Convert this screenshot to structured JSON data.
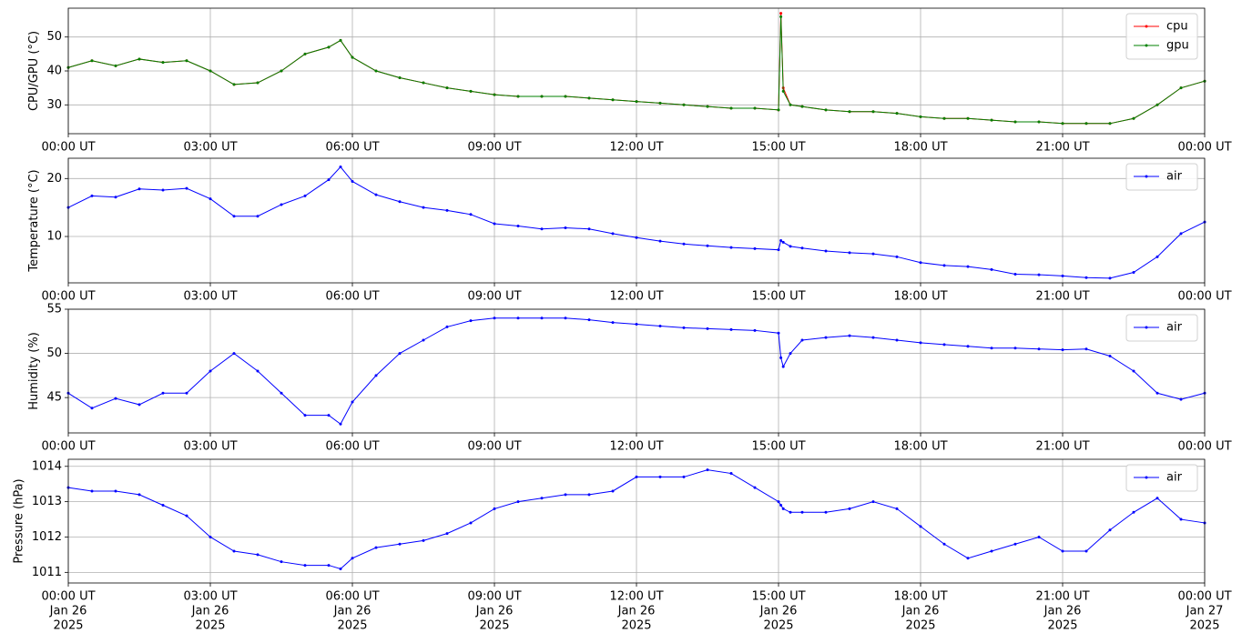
{
  "chart_data": [
    {
      "type": "line",
      "ylabel": "CPU/GPU (°C)",
      "x": [
        "2025-01-26 00:00",
        "2025-01-26 00:30",
        "2025-01-26 01:00",
        "2025-01-26 01:30",
        "2025-01-26 02:00",
        "2025-01-26 02:30",
        "2025-01-26 03:00",
        "2025-01-26 03:30",
        "2025-01-26 04:00",
        "2025-01-26 04:30",
        "2025-01-26 05:00",
        "2025-01-26 05:30",
        "2025-01-26 05:45",
        "2025-01-26 06:00",
        "2025-01-26 06:30",
        "2025-01-26 07:00",
        "2025-01-26 07:30",
        "2025-01-26 08:00",
        "2025-01-26 08:30",
        "2025-01-26 09:00",
        "2025-01-26 09:30",
        "2025-01-26 10:00",
        "2025-01-26 10:30",
        "2025-01-26 11:00",
        "2025-01-26 11:30",
        "2025-01-26 12:00",
        "2025-01-26 12:30",
        "2025-01-26 13:00",
        "2025-01-26 13:30",
        "2025-01-26 14:00",
        "2025-01-26 14:30",
        "2025-01-26 15:00",
        "2025-01-26 15:03",
        "2025-01-26 15:06",
        "2025-01-26 15:15",
        "2025-01-26 15:30",
        "2025-01-26 16:00",
        "2025-01-26 16:30",
        "2025-01-26 17:00",
        "2025-01-26 17:30",
        "2025-01-26 18:00",
        "2025-01-26 18:30",
        "2025-01-26 19:00",
        "2025-01-26 19:30",
        "2025-01-26 20:00",
        "2025-01-26 20:30",
        "2025-01-26 21:00",
        "2025-01-26 21:30",
        "2025-01-26 22:00",
        "2025-01-26 22:30",
        "2025-01-26 23:00",
        "2025-01-26 23:30",
        "2025-01-27 00:00"
      ],
      "series": [
        {
          "name": "cpu",
          "color": "#ff0000",
          "values": [
            41,
            43,
            41.5,
            43.5,
            42.5,
            43,
            40,
            36,
            36.5,
            40,
            45,
            47,
            49,
            44,
            40,
            38,
            36.5,
            35,
            34,
            33,
            32.5,
            32.5,
            32.5,
            32,
            31.5,
            31,
            30.5,
            30,
            29.5,
            29,
            29,
            28.5,
            57,
            35,
            30,
            29.5,
            28.5,
            28,
            28,
            27.5,
            26.5,
            26,
            26,
            25.5,
            25,
            25,
            24.5,
            24.5,
            24.5,
            26,
            30,
            35,
            37
          ]
        },
        {
          "name": "gpu",
          "color": "#008000",
          "values": [
            41,
            43,
            41.5,
            43.5,
            42.5,
            43,
            40,
            36,
            36.5,
            40,
            45,
            47,
            49,
            44,
            40,
            38,
            36.5,
            35,
            34,
            33,
            32.5,
            32.5,
            32.5,
            32,
            31.5,
            31,
            30.5,
            30,
            29.5,
            29,
            29,
            28.5,
            56,
            34,
            30,
            29.5,
            28.5,
            28,
            28,
            27.5,
            26.5,
            26,
            26,
            25.5,
            25,
            25,
            24.5,
            24.5,
            24.5,
            26,
            30,
            35,
            37
          ]
        }
      ],
      "xlim": [
        "2025-01-26 00:00",
        "2025-01-27 00:00"
      ],
      "xticks": [
        {
          "value": "2025-01-26 00:00",
          "label": "00:00 UT"
        },
        {
          "value": "2025-01-26 03:00",
          "label": "03:00 UT"
        },
        {
          "value": "2025-01-26 06:00",
          "label": "06:00 UT"
        },
        {
          "value": "2025-01-26 09:00",
          "label": "09:00 UT"
        },
        {
          "value": "2025-01-26 12:00",
          "label": "12:00 UT"
        },
        {
          "value": "2025-01-26 15:00",
          "label": "15:00 UT"
        },
        {
          "value": "2025-01-26 18:00",
          "label": "18:00 UT"
        },
        {
          "value": "2025-01-26 21:00",
          "label": "21:00 UT"
        },
        {
          "value": "2025-01-27 00:00",
          "label": "00:00 UT"
        }
      ],
      "ylim": [
        21.5,
        58.5
      ],
      "yticks": [
        30,
        40,
        50
      ],
      "grid": true,
      "legend": "upper right"
    },
    {
      "type": "line",
      "ylabel": "Temperature (°C)",
      "x": [
        "2025-01-26 00:00",
        "2025-01-26 00:30",
        "2025-01-26 01:00",
        "2025-01-26 01:30",
        "2025-01-26 02:00",
        "2025-01-26 02:30",
        "2025-01-26 03:00",
        "2025-01-26 03:30",
        "2025-01-26 04:00",
        "2025-01-26 04:30",
        "2025-01-26 05:00",
        "2025-01-26 05:30",
        "2025-01-26 05:45",
        "2025-01-26 06:00",
        "2025-01-26 06:30",
        "2025-01-26 07:00",
        "2025-01-26 07:30",
        "2025-01-26 08:00",
        "2025-01-26 08:30",
        "2025-01-26 09:00",
        "2025-01-26 09:30",
        "2025-01-26 10:00",
        "2025-01-26 10:30",
        "2025-01-26 11:00",
        "2025-01-26 11:30",
        "2025-01-26 12:00",
        "2025-01-26 12:30",
        "2025-01-26 13:00",
        "2025-01-26 13:30",
        "2025-01-26 14:00",
        "2025-01-26 14:30",
        "2025-01-26 15:00",
        "2025-01-26 15:03",
        "2025-01-26 15:06",
        "2025-01-26 15:15",
        "2025-01-26 15:30",
        "2025-01-26 16:00",
        "2025-01-26 16:30",
        "2025-01-26 17:00",
        "2025-01-26 17:30",
        "2025-01-26 18:00",
        "2025-01-26 18:30",
        "2025-01-26 19:00",
        "2025-01-26 19:30",
        "2025-01-26 20:00",
        "2025-01-26 20:30",
        "2025-01-26 21:00",
        "2025-01-26 21:30",
        "2025-01-26 22:00",
        "2025-01-26 22:30",
        "2025-01-26 23:00",
        "2025-01-26 23:30",
        "2025-01-27 00:00"
      ],
      "series": [
        {
          "name": "air",
          "color": "#0000ff",
          "values": [
            15,
            17,
            16.8,
            18.2,
            18,
            18.3,
            16.5,
            13.5,
            13.5,
            15.5,
            17,
            19.8,
            22,
            19.5,
            17.2,
            16,
            15,
            14.5,
            13.8,
            12.2,
            11.8,
            11.3,
            11.5,
            11.3,
            10.5,
            9.8,
            9.2,
            8.7,
            8.4,
            8.1,
            7.9,
            7.7,
            9.3,
            9,
            8.3,
            8,
            7.5,
            7.2,
            7,
            6.5,
            5.5,
            5,
            4.8,
            4.3,
            3.5,
            3.4,
            3.2,
            2.9,
            2.8,
            3.8,
            6.5,
            10.5,
            12.5
          ]
        }
      ],
      "xlim": [
        "2025-01-26 00:00",
        "2025-01-27 00:00"
      ],
      "xticks": [
        {
          "value": "2025-01-26 00:00",
          "label": "00:00 UT"
        },
        {
          "value": "2025-01-26 03:00",
          "label": "03:00 UT"
        },
        {
          "value": "2025-01-26 06:00",
          "label": "06:00 UT"
        },
        {
          "value": "2025-01-26 09:00",
          "label": "09:00 UT"
        },
        {
          "value": "2025-01-26 12:00",
          "label": "12:00 UT"
        },
        {
          "value": "2025-01-26 15:00",
          "label": "15:00 UT"
        },
        {
          "value": "2025-01-26 18:00",
          "label": "18:00 UT"
        },
        {
          "value": "2025-01-26 21:00",
          "label": "21:00 UT"
        },
        {
          "value": "2025-01-27 00:00",
          "label": "00:00 UT"
        }
      ],
      "ylim": [
        2,
        23.5
      ],
      "yticks": [
        10,
        20
      ],
      "grid": true,
      "legend": "upper right"
    },
    {
      "type": "line",
      "ylabel": "Humidity (%)",
      "x": [
        "2025-01-26 00:00",
        "2025-01-26 00:30",
        "2025-01-26 01:00",
        "2025-01-26 01:30",
        "2025-01-26 02:00",
        "2025-01-26 02:30",
        "2025-01-26 03:00",
        "2025-01-26 03:30",
        "2025-01-26 04:00",
        "2025-01-26 04:30",
        "2025-01-26 05:00",
        "2025-01-26 05:30",
        "2025-01-26 05:45",
        "2025-01-26 06:00",
        "2025-01-26 06:30",
        "2025-01-26 07:00",
        "2025-01-26 07:30",
        "2025-01-26 08:00",
        "2025-01-26 08:30",
        "2025-01-26 09:00",
        "2025-01-26 09:30",
        "2025-01-26 10:00",
        "2025-01-26 10:30",
        "2025-01-26 11:00",
        "2025-01-26 11:30",
        "2025-01-26 12:00",
        "2025-01-26 12:30",
        "2025-01-26 13:00",
        "2025-01-26 13:30",
        "2025-01-26 14:00",
        "2025-01-26 14:30",
        "2025-01-26 15:00",
        "2025-01-26 15:03",
        "2025-01-26 15:06",
        "2025-01-26 15:15",
        "2025-01-26 15:30",
        "2025-01-26 16:00",
        "2025-01-26 16:30",
        "2025-01-26 17:00",
        "2025-01-26 17:30",
        "2025-01-26 18:00",
        "2025-01-26 18:30",
        "2025-01-26 19:00",
        "2025-01-26 19:30",
        "2025-01-26 20:00",
        "2025-01-26 20:30",
        "2025-01-26 21:00",
        "2025-01-26 21:30",
        "2025-01-26 22:00",
        "2025-01-26 22:30",
        "2025-01-26 23:00",
        "2025-01-26 23:30",
        "2025-01-27 00:00"
      ],
      "series": [
        {
          "name": "air",
          "color": "#0000ff",
          "values": [
            45.5,
            43.8,
            44.9,
            44.2,
            45.5,
            45.5,
            48,
            50,
            48,
            45.5,
            43,
            43,
            42,
            44.5,
            47.5,
            50,
            51.5,
            53,
            53.7,
            54,
            54,
            54,
            54,
            53.8,
            53.5,
            53.3,
            53.1,
            52.9,
            52.8,
            52.7,
            52.6,
            52.3,
            49.5,
            48.5,
            50,
            51.5,
            51.8,
            52,
            51.8,
            51.5,
            51.2,
            51,
            50.8,
            50.6,
            50.6,
            50.5,
            50.4,
            50.5,
            49.7,
            48,
            45.5,
            44.8,
            45.5
          ]
        }
      ],
      "xlim": [
        "2025-01-26 00:00",
        "2025-01-27 00:00"
      ],
      "xticks": [
        {
          "value": "2025-01-26 00:00",
          "label": "00:00 UT"
        },
        {
          "value": "2025-01-26 03:00",
          "label": "03:00 UT"
        },
        {
          "value": "2025-01-26 06:00",
          "label": "06:00 UT"
        },
        {
          "value": "2025-01-26 09:00",
          "label": "09:00 UT"
        },
        {
          "value": "2025-01-26 12:00",
          "label": "12:00 UT"
        },
        {
          "value": "2025-01-26 15:00",
          "label": "15:00 UT"
        },
        {
          "value": "2025-01-26 18:00",
          "label": "18:00 UT"
        },
        {
          "value": "2025-01-26 21:00",
          "label": "21:00 UT"
        },
        {
          "value": "2025-01-27 00:00",
          "label": "00:00 UT"
        }
      ],
      "ylim": [
        41,
        55
      ],
      "yticks": [
        45,
        50,
        55
      ],
      "grid": true,
      "legend": "upper right"
    },
    {
      "type": "line",
      "ylabel": "Pressure (hPa)",
      "x": [
        "2025-01-26 00:00",
        "2025-01-26 00:30",
        "2025-01-26 01:00",
        "2025-01-26 01:30",
        "2025-01-26 02:00",
        "2025-01-26 02:30",
        "2025-01-26 03:00",
        "2025-01-26 03:30",
        "2025-01-26 04:00",
        "2025-01-26 04:30",
        "2025-01-26 05:00",
        "2025-01-26 05:30",
        "2025-01-26 05:45",
        "2025-01-26 06:00",
        "2025-01-26 06:30",
        "2025-01-26 07:00",
        "2025-01-26 07:30",
        "2025-01-26 08:00",
        "2025-01-26 08:30",
        "2025-01-26 09:00",
        "2025-01-26 09:30",
        "2025-01-26 10:00",
        "2025-01-26 10:30",
        "2025-01-26 11:00",
        "2025-01-26 11:30",
        "2025-01-26 12:00",
        "2025-01-26 12:30",
        "2025-01-26 13:00",
        "2025-01-26 13:30",
        "2025-01-26 14:00",
        "2025-01-26 14:30",
        "2025-01-26 15:00",
        "2025-01-26 15:03",
        "2025-01-26 15:06",
        "2025-01-26 15:15",
        "2025-01-26 15:30",
        "2025-01-26 16:00",
        "2025-01-26 16:30",
        "2025-01-26 17:00",
        "2025-01-26 17:30",
        "2025-01-26 18:00",
        "2025-01-26 18:30",
        "2025-01-26 19:00",
        "2025-01-26 19:30",
        "2025-01-26 20:00",
        "2025-01-26 20:30",
        "2025-01-26 21:00",
        "2025-01-26 21:30",
        "2025-01-26 22:00",
        "2025-01-26 22:30",
        "2025-01-26 23:00",
        "2025-01-26 23:30",
        "2025-01-27 00:00"
      ],
      "series": [
        {
          "name": "air",
          "color": "#0000ff",
          "values": [
            1013.4,
            1013.3,
            1013.3,
            1013.2,
            1012.9,
            1012.6,
            1012,
            1011.6,
            1011.5,
            1011.3,
            1011.2,
            1011.2,
            1011.1,
            1011.4,
            1011.7,
            1011.8,
            1011.9,
            1012.1,
            1012.4,
            1012.8,
            1013,
            1013.1,
            1013.2,
            1013.2,
            1013.3,
            1013.7,
            1013.7,
            1013.7,
            1013.9,
            1013.8,
            1013.4,
            1013,
            1012.9,
            1012.8,
            1012.7,
            1012.7,
            1012.7,
            1012.8,
            1013,
            1012.8,
            1012.3,
            1011.8,
            1011.4,
            1011.6,
            1011.8,
            1012,
            1011.6,
            1011.6,
            1012.2,
            1012.7,
            1013.1,
            1012.5,
            1012.4
          ]
        }
      ],
      "xlim": [
        "2025-01-26 00:00",
        "2025-01-27 00:00"
      ],
      "xticks": [
        {
          "value": "2025-01-26 00:00",
          "label": [
            "00:00 UT",
            "Jan 26",
            "2025"
          ]
        },
        {
          "value": "2025-01-26 03:00",
          "label": [
            "03:00 UT",
            "Jan 26",
            "2025"
          ]
        },
        {
          "value": "2025-01-26 06:00",
          "label": [
            "06:00 UT",
            "Jan 26",
            "2025"
          ]
        },
        {
          "value": "2025-01-26 09:00",
          "label": [
            "09:00 UT",
            "Jan 26",
            "2025"
          ]
        },
        {
          "value": "2025-01-26 12:00",
          "label": [
            "12:00 UT",
            "Jan 26",
            "2025"
          ]
        },
        {
          "value": "2025-01-26 15:00",
          "label": [
            "15:00 UT",
            "Jan 26",
            "2025"
          ]
        },
        {
          "value": "2025-01-26 18:00",
          "label": [
            "18:00 UT",
            "Jan 26",
            "2025"
          ]
        },
        {
          "value": "2025-01-26 21:00",
          "label": [
            "21:00 UT",
            "Jan 26",
            "2025"
          ]
        },
        {
          "value": "2025-01-27 00:00",
          "label": [
            "00:00 UT",
            "Jan 27",
            "2025"
          ]
        }
      ],
      "ylim": [
        1010.7,
        1014.2
      ],
      "yticks": [
        1011,
        1012,
        1013,
        1014
      ],
      "grid": true,
      "legend": "upper right"
    }
  ]
}
